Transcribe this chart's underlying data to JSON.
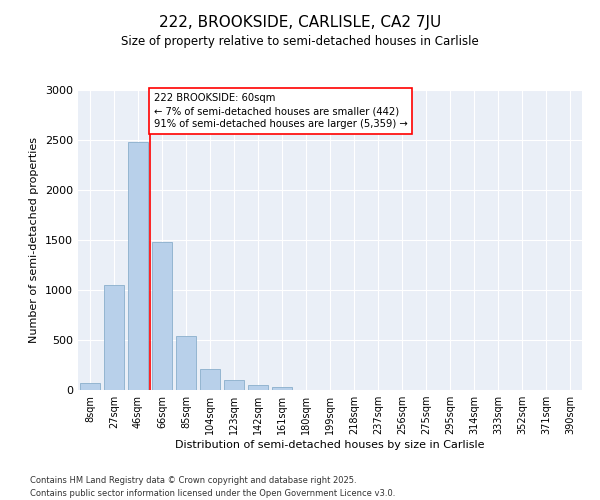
{
  "title": "222, BROOKSIDE, CARLISLE, CA2 7JU",
  "subtitle": "Size of property relative to semi-detached houses in Carlisle",
  "xlabel": "Distribution of semi-detached houses by size in Carlisle",
  "ylabel": "Number of semi-detached properties",
  "categories": [
    "8sqm",
    "27sqm",
    "46sqm",
    "66sqm",
    "85sqm",
    "104sqm",
    "123sqm",
    "142sqm",
    "161sqm",
    "180sqm",
    "199sqm",
    "218sqm",
    "237sqm",
    "256sqm",
    "275sqm",
    "295sqm",
    "314sqm",
    "333sqm",
    "352sqm",
    "371sqm",
    "390sqm"
  ],
  "values": [
    70,
    1050,
    2480,
    1480,
    545,
    210,
    100,
    55,
    35,
    5,
    5,
    5,
    0,
    0,
    0,
    5,
    0,
    0,
    0,
    0,
    0
  ],
  "bar_color": "#b8d0ea",
  "bar_edge_color": "#8aaecc",
  "property_line_x": 2.5,
  "annotation_text": "222 BROOKSIDE: 60sqm\n← 7% of semi-detached houses are smaller (442)\n91% of semi-detached houses are larger (5,359) →",
  "ylim": [
    0,
    3000
  ],
  "yticks": [
    0,
    500,
    1000,
    1500,
    2000,
    2500,
    3000
  ],
  "footer": "Contains HM Land Registry data © Crown copyright and database right 2025.\nContains public sector information licensed under the Open Government Licence v3.0.",
  "background_color": "#eaeff7",
  "bar_width": 0.85
}
